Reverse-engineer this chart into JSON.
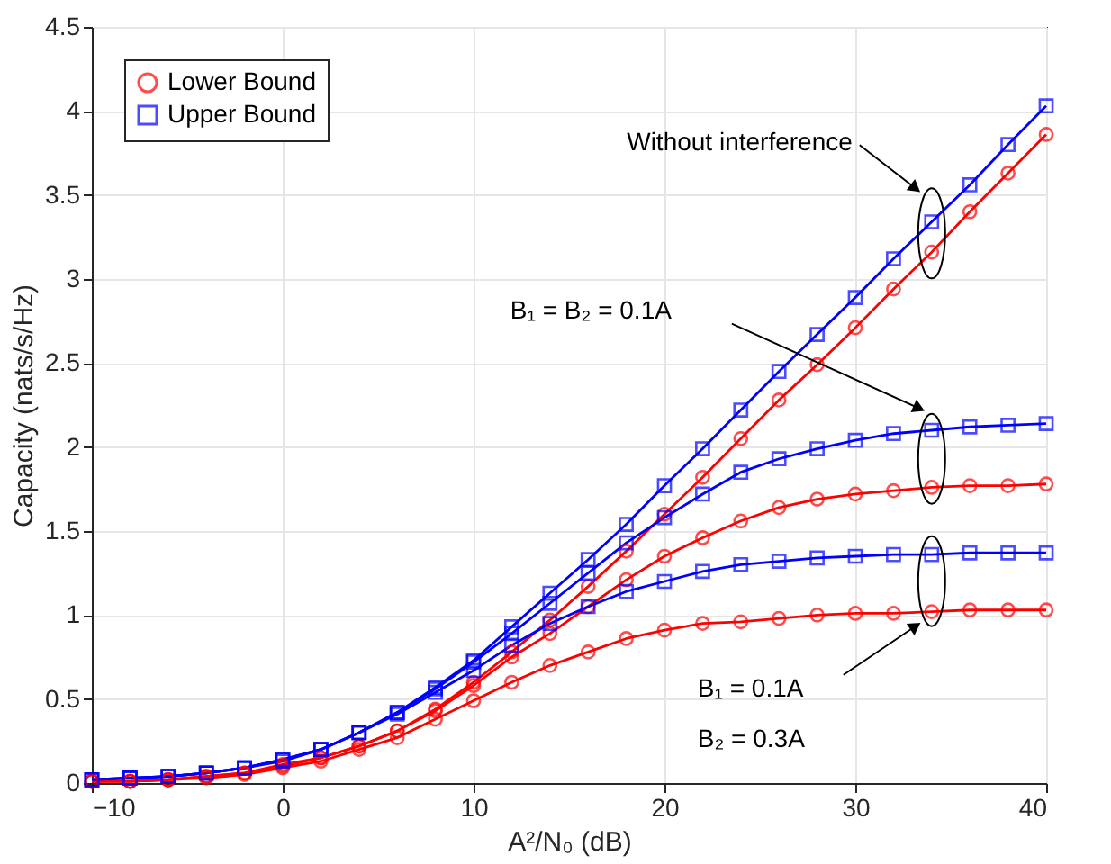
{
  "chart_data": {
    "type": "line",
    "xlabel": "A²/N₀ (dB)",
    "ylabel": "Capacity (nats/s/Hz)",
    "x": [
      -10,
      -8,
      -6,
      -4,
      -2,
      0,
      2,
      4,
      6,
      8,
      10,
      12,
      14,
      16,
      18,
      20,
      22,
      24,
      26,
      28,
      30,
      32,
      34,
      36,
      38,
      40
    ],
    "xlim": [
      -10,
      40
    ],
    "xticks": [
      -10,
      0,
      10,
      20,
      30,
      40
    ],
    "ylim": [
      0,
      4.5
    ],
    "yticks": [
      0,
      0.5,
      1,
      1.5,
      2,
      2.5,
      3,
      3.5,
      4,
      4.5
    ],
    "grid": true,
    "legend": "top left",
    "line_style": "solid",
    "series": [
      {
        "name": "Lower Bound",
        "color": "#ff0000",
        "marker": "circle",
        "values": [
          0.01,
          0.01,
          0.02,
          0.04,
          0.06,
          0.11,
          0.15,
          0.22,
          0.31,
          0.44,
          0.6,
          0.78,
          0.97,
          1.17,
          1.38,
          1.6,
          1.82,
          2.05,
          2.28,
          2.49,
          2.71,
          2.94,
          3.16,
          3.4,
          3.63,
          3.86
        ]
      },
      {
        "name": "Upper Bound",
        "color": "#0000ff",
        "marker": "square",
        "values": [
          0.02,
          0.03,
          0.04,
          0.06,
          0.09,
          0.14,
          0.2,
          0.3,
          0.42,
          0.57,
          0.73,
          0.93,
          1.13,
          1.33,
          1.54,
          1.77,
          1.99,
          2.22,
          2.45,
          2.67,
          2.89,
          3.12,
          3.34,
          3.56,
          3.8,
          4.03
        ]
      },
      {
        "color": "#ff0000",
        "marker": "circle",
        "values": [
          0.01,
          0.01,
          0.02,
          0.04,
          0.06,
          0.1,
          0.15,
          0.22,
          0.31,
          0.43,
          0.58,
          0.75,
          0.89,
          1.05,
          1.21,
          1.35,
          1.46,
          1.56,
          1.64,
          1.69,
          1.72,
          1.74,
          1.76,
          1.77,
          1.77,
          1.78
        ]
      },
      {
        "color": "#0000ff",
        "marker": "square",
        "values": [
          0.02,
          0.03,
          0.04,
          0.06,
          0.09,
          0.14,
          0.2,
          0.3,
          0.42,
          0.56,
          0.72,
          0.89,
          1.07,
          1.25,
          1.43,
          1.58,
          1.72,
          1.85,
          1.93,
          1.99,
          2.04,
          2.08,
          2.1,
          2.12,
          2.13,
          2.14
        ]
      },
      {
        "color": "#ff0000",
        "marker": "circle",
        "values": [
          0.01,
          0.01,
          0.02,
          0.03,
          0.05,
          0.09,
          0.13,
          0.2,
          0.27,
          0.38,
          0.49,
          0.6,
          0.7,
          0.78,
          0.86,
          0.91,
          0.95,
          0.96,
          0.98,
          1.0,
          1.01,
          1.01,
          1.02,
          1.03,
          1.03,
          1.03
        ]
      },
      {
        "color": "#0000ff",
        "marker": "square",
        "values": [
          0.02,
          0.03,
          0.04,
          0.06,
          0.09,
          0.13,
          0.2,
          0.3,
          0.41,
          0.54,
          0.67,
          0.82,
          0.95,
          1.05,
          1.14,
          1.2,
          1.26,
          1.3,
          1.32,
          1.34,
          1.35,
          1.36,
          1.36,
          1.37,
          1.37,
          1.37
        ]
      }
    ],
    "annotations": [
      "Without interference",
      "B₁ = B₂ = 0.1A",
      "B₁ = 0.1A",
      "B₂ = 0.3A"
    ]
  }
}
